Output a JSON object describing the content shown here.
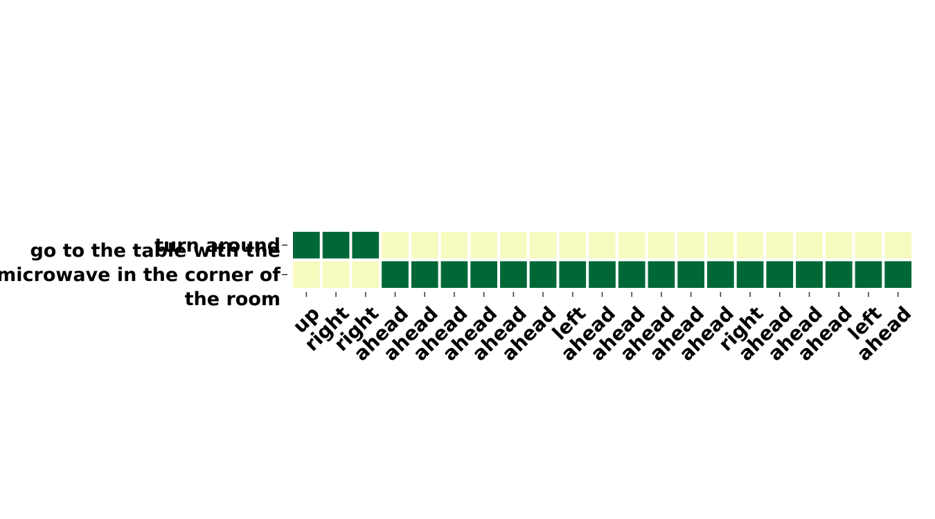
{
  "chart_data": {
    "type": "heatmap",
    "rows": [
      "turn around",
      "go to the table with the microwave in the corner of the room"
    ],
    "row_label_lines": [
      [
        "turn around"
      ],
      [
        "go to the table with the",
        "microwave in the corner of",
        "the room"
      ]
    ],
    "columns": [
      "up",
      "right",
      "right",
      "ahead",
      "ahead",
      "ahead",
      "ahead",
      "ahead",
      "ahead",
      "left",
      "ahead",
      "ahead",
      "ahead",
      "ahead",
      "ahead",
      "right",
      "ahead",
      "ahead",
      "ahead",
      "left",
      "ahead"
    ],
    "values": [
      [
        1,
        1,
        1,
        0,
        0,
        0,
        0,
        0,
        0,
        0,
        0,
        0,
        0,
        0,
        0,
        0,
        0,
        0,
        0,
        0,
        0
      ],
      [
        0,
        0,
        0,
        1,
        1,
        1,
        1,
        1,
        1,
        1,
        1,
        1,
        1,
        1,
        1,
        1,
        1,
        1,
        1,
        1,
        1
      ]
    ],
    "colors": {
      "low": "#f7fbc0",
      "high": "#006837"
    },
    "grid": false,
    "legend": "none"
  }
}
